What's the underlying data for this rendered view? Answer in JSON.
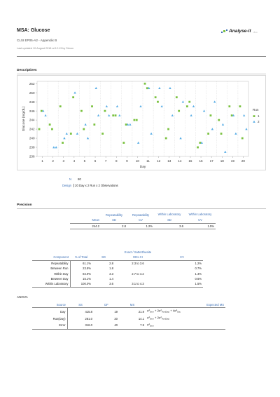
{
  "header": {
    "title": "MSA: Glucose",
    "subtitle": "CLSI EP05-A2 - Appendix B",
    "updated": "Last updated 10 August 2018 at 12:13 by Simon",
    "logo_text": "Analyse-it",
    "logo_version": "v5.11",
    "logo_colors": [
      "#3b6fb6",
      "#7cc242",
      "#3b6fb6"
    ]
  },
  "descriptives": {
    "heading": "Descriptives",
    "n_label": "N",
    "n_value": "80",
    "design_label": "Design",
    "design_value": "20 Day x 2 Run x 2 Observations"
  },
  "chart_data": {
    "type": "scatter",
    "ylabel": "Glucose (mg/dL)",
    "xlabel": "Day",
    "ylim": [
      236,
      252.5
    ],
    "yticks": [
      236,
      238,
      240,
      242,
      244,
      246,
      248,
      250,
      252
    ],
    "xticks": [
      1,
      2,
      3,
      4,
      5,
      6,
      7,
      8,
      9,
      10,
      11,
      12,
      13,
      14,
      15,
      16,
      17,
      18,
      19,
      20
    ],
    "grid": "vertical dashed",
    "legend_title": "Run",
    "legend_placement": "right",
    "series": [
      {
        "name": "1",
        "marker": "square",
        "color": "#7cc242",
        "points": [
          [
            1,
            242
          ],
          [
            1,
            246
          ],
          [
            2,
            243
          ],
          [
            2,
            242
          ],
          [
            3,
            247
          ],
          [
            3,
            239
          ],
          [
            4,
            241
          ],
          [
            4,
            249
          ],
          [
            5,
            246
          ],
          [
            5,
            242
          ],
          [
            6,
            247
          ],
          [
            6,
            243
          ],
          [
            7,
            241
          ],
          [
            7,
            246
          ],
          [
            8,
            245
          ],
          [
            8,
            245
          ],
          [
            9,
            239
          ],
          [
            9,
            243
          ],
          [
            10,
            244
          ],
          [
            10,
            244
          ],
          [
            11,
            252
          ],
          [
            11,
            251
          ],
          [
            12,
            249
          ],
          [
            12,
            248
          ],
          [
            13,
            240
          ],
          [
            13,
            242
          ],
          [
            14,
            249
          ],
          [
            14,
            246
          ],
          [
            15,
            247
          ],
          [
            15,
            248
          ],
          [
            16,
            238
          ],
          [
            16,
            239
          ],
          [
            17,
            241
          ],
          [
            17,
            245
          ],
          [
            18,
            244
          ],
          [
            18,
            241
          ],
          [
            19,
            247
          ],
          [
            19,
            245
          ],
          [
            20,
            247
          ],
          [
            20,
            240
          ]
        ]
      },
      {
        "name": "2",
        "marker": "triangle",
        "color": "#5aaee6",
        "points": [
          [
            1,
            246
          ],
          [
            1,
            245
          ],
          [
            2,
            238
          ],
          [
            2,
            238
          ],
          [
            3,
            240
          ],
          [
            3,
            241
          ],
          [
            4,
            250
          ],
          [
            4,
            241
          ],
          [
            5,
            243
          ],
          [
            5,
            240
          ],
          [
            6,
            251
          ],
          [
            6,
            245
          ],
          [
            7,
            247
          ],
          [
            7,
            245
          ],
          [
            8,
            247
          ],
          [
            8,
            245
          ],
          [
            9,
            243
          ],
          [
            9,
            243
          ],
          [
            10,
            239
          ],
          [
            10,
            247
          ],
          [
            11,
            251
          ],
          [
            11,
            241
          ],
          [
            12,
            251
          ],
          [
            12,
            247
          ],
          [
            13,
            251
          ],
          [
            13,
            245
          ],
          [
            14,
            240
          ],
          [
            14,
            248
          ],
          [
            15,
            245
          ],
          [
            15,
            247
          ],
          [
            16,
            239
          ],
          [
            16,
            246
          ],
          [
            17,
            242
          ],
          [
            17,
            248
          ],
          [
            18,
            243
          ],
          [
            18,
            237
          ],
          [
            19,
            245
          ],
          [
            19,
            241
          ],
          [
            20,
            245
          ],
          [
            20,
            242
          ]
        ]
      }
    ]
  },
  "precision": {
    "heading": "Precision",
    "summary": {
      "headers": [
        [
          "",
          "Repeatability",
          "Repeatability",
          "Within Laboratory",
          "Within Laboratory"
        ],
        [
          "Mean",
          "SD",
          "CV",
          "SD",
          "CV"
        ]
      ],
      "row": [
        "244.2",
        "2.8",
        "1.2%",
        "3.6",
        "1.5%"
      ]
    },
    "components": {
      "ci_header": "Exact / Satterthwaite",
      "headers": [
        "Component",
        "% of Total",
        "SD",
        "95% CI",
        "CV"
      ],
      "rows": [
        [
          "Repeatability",
          "61.1%",
          "2.8",
          "2.3  to 3.6",
          "1.2%"
        ],
        [
          "Between Run",
          "23.8%",
          "1.8",
          "",
          "0.7%"
        ],
        [
          "Within Day",
          "84.9%",
          "3.3",
          "2.7  to 4.2",
          "1.4%"
        ],
        [
          "Between Day",
          "15.1%",
          "1.4",
          "",
          "0.6%"
        ],
        [
          "Within Laboratory",
          "100.0%",
          "3.6",
          "3.1  to 4.3",
          "1.5%"
        ]
      ]
    },
    "anova": {
      "label": "ANOVA",
      "headers": [
        "Source",
        "SS",
        "DF",
        "MS",
        "Expected MS"
      ],
      "rows": [
        {
          "source": "Day",
          "ss": "415.8",
          "df": "19",
          "ms": "21.9"
        },
        {
          "source": "Run(Day)",
          "ss": "281.0",
          "df": "20",
          "ms": "14.1"
        },
        {
          "source": "Error",
          "ss": "316.0",
          "df": "40",
          "ms": "7.9"
        }
      ],
      "expected_ms": [
        {
          "a": "σ",
          "a_sub": "Error",
          "b": " + 2σ",
          "b_sub": "Run(Day)",
          "c": " + 4σ",
          "c_sub": "Day"
        },
        {
          "a": "σ",
          "a_sub": "Error",
          "b": " + 2σ",
          "b_sub": "Run(Day)",
          "c": "",
          "c_sub": ""
        },
        {
          "a": "σ",
          "a_sub": "Error",
          "b": "",
          "b_sub": "",
          "c": "",
          "c_sub": ""
        }
      ]
    }
  }
}
